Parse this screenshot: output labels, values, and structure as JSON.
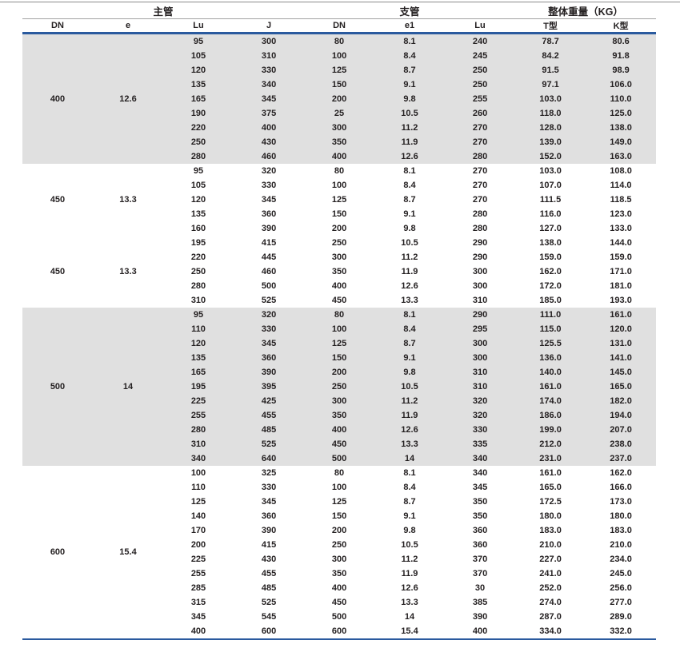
{
  "table": {
    "group_headers": [
      {
        "label": "主管",
        "span": 4
      },
      {
        "label": "支管",
        "span": 3
      },
      {
        "label": "整体重量（KG）",
        "span": 2
      }
    ],
    "columns": [
      "DN",
      "e",
      "Lu",
      "J",
      "DN",
      "e1",
      "Lu",
      "T型",
      "K型"
    ],
    "groups": [
      {
        "dn": "400",
        "e": "12.6",
        "shaded": true,
        "rows": [
          [
            "95",
            "300",
            "80",
            "8.1",
            "240",
            "78.7",
            "80.6"
          ],
          [
            "105",
            "310",
            "100",
            "8.4",
            "245",
            "84.2",
            "91.8"
          ],
          [
            "120",
            "330",
            "125",
            "8.7",
            "250",
            "91.5",
            "98.9"
          ],
          [
            "135",
            "340",
            "150",
            "9.1",
            "250",
            "97.1",
            "106.0"
          ],
          [
            "165",
            "345",
            "200",
            "9.8",
            "255",
            "103.0",
            "110.0"
          ],
          [
            "190",
            "375",
            "25",
            "10.5",
            "260",
            "118.0",
            "125.0"
          ],
          [
            "220",
            "400",
            "300",
            "11.2",
            "270",
            "128.0",
            "138.0"
          ],
          [
            "250",
            "430",
            "350",
            "11.9",
            "270",
            "139.0",
            "149.0"
          ],
          [
            "280",
            "460",
            "400",
            "12.6",
            "280",
            "152.0",
            "163.0"
          ]
        ]
      },
      {
        "dn": "450",
        "e": "13.3",
        "shaded": false,
        "rows": [
          [
            "95",
            "320",
            "80",
            "8.1",
            "270",
            "103.0",
            "108.0"
          ],
          [
            "105",
            "330",
            "100",
            "8.4",
            "270",
            "107.0",
            "114.0"
          ],
          [
            "120",
            "345",
            "125",
            "8.7",
            "270",
            "111.5",
            "118.5"
          ],
          [
            "135",
            "360",
            "150",
            "9.1",
            "280",
            "116.0",
            "123.0"
          ],
          [
            "160",
            "390",
            "200",
            "9.8",
            "280",
            "127.0",
            "133.0"
          ]
        ]
      },
      {
        "dn": "450",
        "e": "13.3",
        "shaded": false,
        "rows": [
          [
            "195",
            "415",
            "250",
            "10.5",
            "290",
            "138.0",
            "144.0"
          ],
          [
            "220",
            "445",
            "300",
            "11.2",
            "290",
            "159.0",
            "159.0"
          ],
          [
            "250",
            "460",
            "350",
            "11.9",
            "300",
            "162.0",
            "171.0"
          ],
          [
            "280",
            "500",
            "400",
            "12.6",
            "300",
            "172.0",
            "181.0"
          ],
          [
            "310",
            "525",
            "450",
            "13.3",
            "310",
            "185.0",
            "193.0"
          ]
        ]
      },
      {
        "dn": "500",
        "e": "14",
        "shaded": true,
        "rows": [
          [
            "95",
            "320",
            "80",
            "8.1",
            "290",
            "111.0",
            "161.0"
          ],
          [
            "110",
            "330",
            "100",
            "8.4",
            "295",
            "115.0",
            "120.0"
          ],
          [
            "120",
            "345",
            "125",
            "8.7",
            "300",
            "125.5",
            "131.0"
          ],
          [
            "135",
            "360",
            "150",
            "9.1",
            "300",
            "136.0",
            "141.0"
          ],
          [
            "165",
            "390",
            "200",
            "9.8",
            "310",
            "140.0",
            "145.0"
          ],
          [
            "195",
            "395",
            "250",
            "10.5",
            "310",
            "161.0",
            "165.0"
          ],
          [
            "225",
            "425",
            "300",
            "11.2",
            "320",
            "174.0",
            "182.0"
          ],
          [
            "255",
            "455",
            "350",
            "11.9",
            "320",
            "186.0",
            "194.0"
          ],
          [
            "280",
            "485",
            "400",
            "12.6",
            "330",
            "199.0",
            "207.0"
          ],
          [
            "310",
            "525",
            "450",
            "13.3",
            "335",
            "212.0",
            "238.0"
          ],
          [
            "340",
            "640",
            "500",
            "14",
            "340",
            "231.0",
            "237.0"
          ]
        ]
      },
      {
        "dn": "600",
        "e": "15.4",
        "shaded": false,
        "rows": [
          [
            "100",
            "325",
            "80",
            "8.1",
            "340",
            "161.0",
            "162.0"
          ],
          [
            "110",
            "330",
            "100",
            "8.4",
            "345",
            "165.0",
            "166.0"
          ],
          [
            "125",
            "345",
            "125",
            "8.7",
            "350",
            "172.5",
            "173.0"
          ],
          [
            "140",
            "360",
            "150",
            "9.1",
            "350",
            "180.0",
            "180.0"
          ],
          [
            "170",
            "390",
            "200",
            "9.8",
            "360",
            "183.0",
            "183.0"
          ],
          [
            "200",
            "415",
            "250",
            "10.5",
            "360",
            "210.0",
            "210.0"
          ],
          [
            "225",
            "430",
            "300",
            "11.2",
            "370",
            "227.0",
            "234.0"
          ],
          [
            "255",
            "455",
            "350",
            "11.9",
            "370",
            "241.0",
            "245.0"
          ],
          [
            "285",
            "485",
            "400",
            "12.6",
            "30",
            "252.0",
            "256.0"
          ],
          [
            "315",
            "525",
            "450",
            "13.3",
            "385",
            "274.0",
            "277.0"
          ],
          [
            "345",
            "545",
            "500",
            "14",
            "390",
            "287.0",
            "289.0"
          ],
          [
            "400",
            "600",
            "600",
            "15.4",
            "400",
            "334.0",
            "332.0"
          ]
        ]
      }
    ],
    "colors": {
      "accent_blue": "#2a5a9e",
      "shaded_row_bg": "#e0e0e0",
      "header_rule_gray": "#a3a3a3",
      "text": "#231f20"
    }
  }
}
